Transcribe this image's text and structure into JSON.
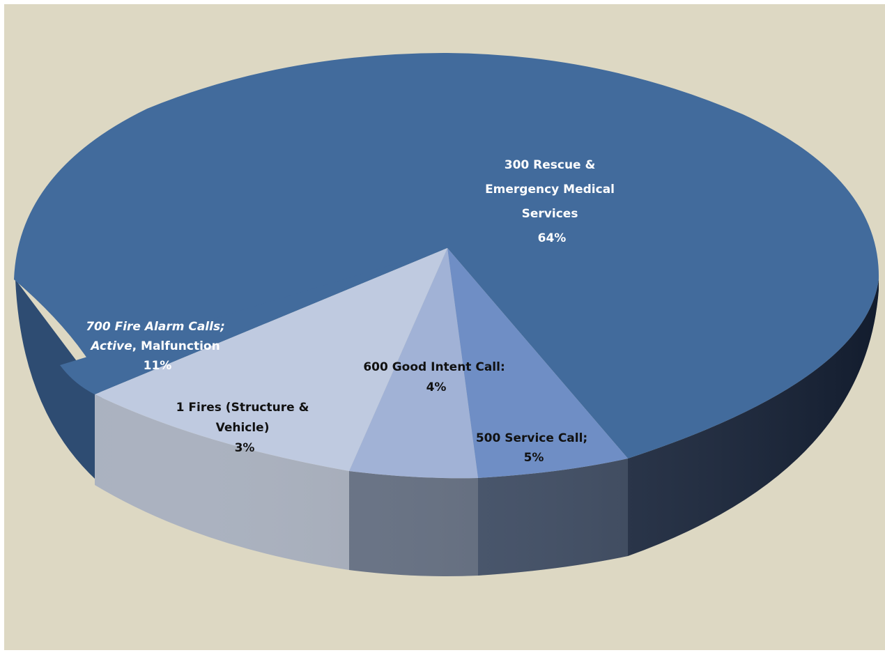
{
  "colors": {
    "background": "#ddd8c3",
    "rescue": "#426b9c",
    "fire_alarm": "#426b9c",
    "fires": "#bfcae0",
    "good_intent": "#a1b2d6",
    "service": "#6f8ec5",
    "label_light": "#ffffff",
    "label_dark": "#111111"
  },
  "chart_data": {
    "type": "pie",
    "title": "",
    "slices": [
      {
        "key": "rescue",
        "lines": [
          "300 Rescue &",
          "Emergency Medical",
          "Services"
        ],
        "pct_label": "64%",
        "value": 64
      },
      {
        "key": "fire_alarm",
        "lines": [
          "700 Fire Alarm Calls;",
          "Active, Malfunction"
        ],
        "pct_label": "11%",
        "value": 11
      },
      {
        "key": "fires",
        "lines": [
          "1 Fires (Structure &",
          "Vehicle)"
        ],
        "pct_label": "3%",
        "value": 3
      },
      {
        "key": "good_intent",
        "lines": [
          "600 Good Intent Call:"
        ],
        "pct_label": "4%",
        "value": 4
      },
      {
        "key": "service",
        "lines": [
          "500 Service Call;"
        ],
        "pct_label": "5%",
        "value": 5
      }
    ]
  }
}
